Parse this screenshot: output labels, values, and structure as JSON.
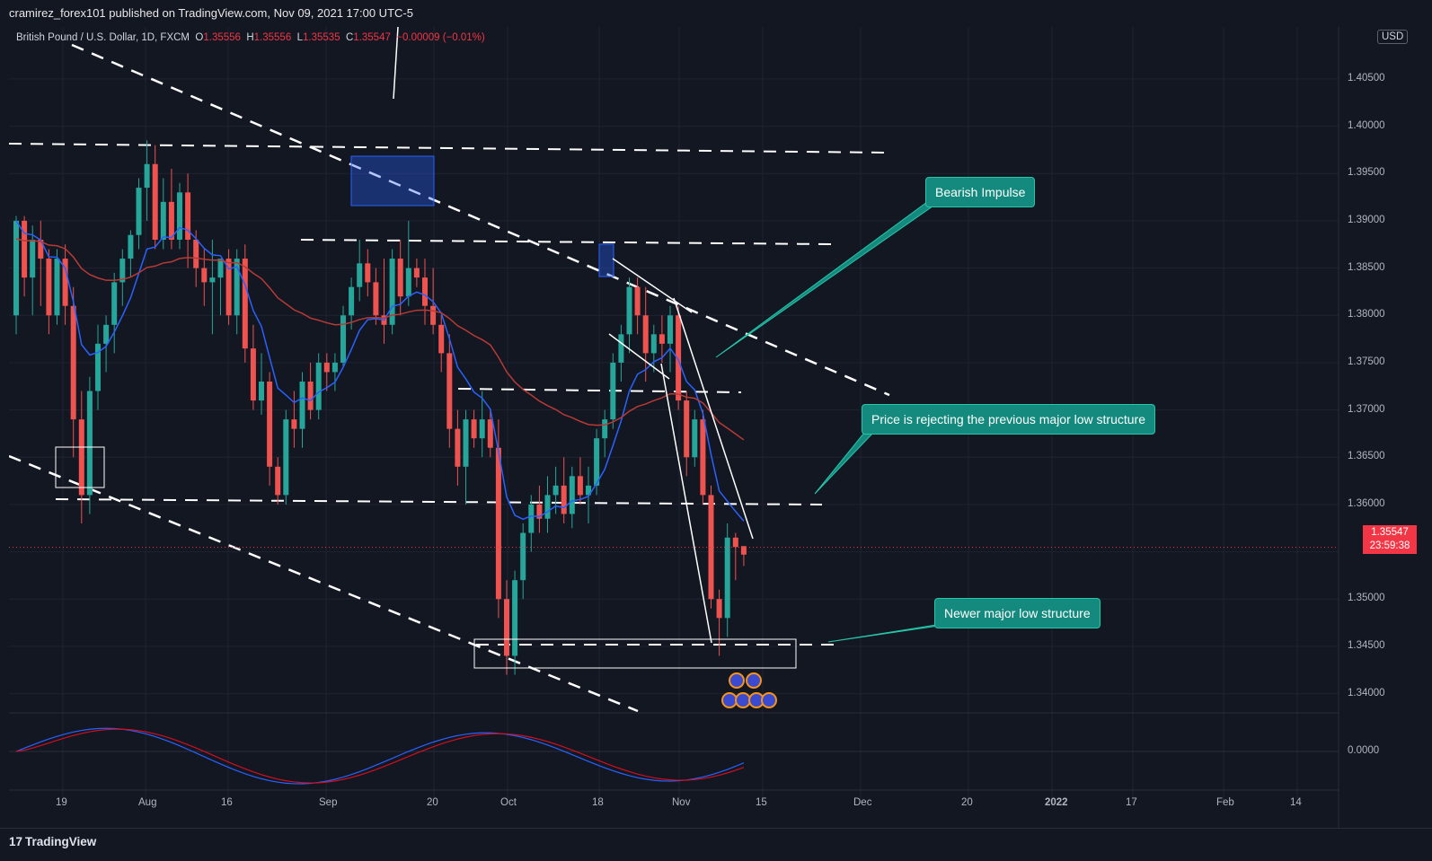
{
  "header": {
    "published_line": "cramirez_forex101 published on TradingView.com, Nov 09, 2021 17:00 UTC-5"
  },
  "legend": {
    "symbol": "British Pound / U.S. Dollar, 1D, FXCM",
    "o_label": "O",
    "o_value": "1.35556",
    "h_label": "H",
    "h_value": "1.35556",
    "l_label": "L",
    "l_value": "1.35535",
    "c_label": "C",
    "c_value": "1.35547",
    "change": "−0.00009 (−0.01%)"
  },
  "currency": "USD",
  "last_price": {
    "value": "1.35547",
    "countdown": "23:59:38"
  },
  "annotations": [
    {
      "text": "Bearish Impulse"
    },
    {
      "text": "Price is rejecting the previous major low structure"
    },
    {
      "text": "Newer major low structure"
    }
  ],
  "colors": {
    "bull": "#26a69a",
    "bear": "#ef5350",
    "ema_fast": "#2962ff",
    "ema_slow": "#b73a36",
    "stoch_k": "#2962ff",
    "stoch_d": "#d10f1f",
    "callout": "#138a7d"
  },
  "footer": {
    "brand": "TradingView",
    "brand_mark": "17"
  },
  "chart_data": {
    "type": "candlestick",
    "symbol": "GBPUSD",
    "timeframe": "1D",
    "y_axis": {
      "ticks": [
        "1.40500",
        "1.40000",
        "1.39500",
        "1.39000",
        "1.38500",
        "1.38000",
        "1.37500",
        "1.37000",
        "1.36500",
        "1.36000",
        "1.35000",
        "1.34500",
        "1.34000"
      ],
      "range": [
        1.3355,
        1.4105
      ]
    },
    "x_axis": {
      "ticks": [
        "19",
        "Aug",
        "16",
        "Sep",
        "20",
        "Oct",
        "18",
        "Nov",
        "15",
        "Dec",
        "20",
        "2022",
        "17",
        "Feb",
        "14"
      ]
    },
    "oscillator": {
      "ticks": [
        "0.0000"
      ]
    },
    "candles": [
      [
        1.38,
        1.3905,
        1.378,
        1.39
      ],
      [
        1.39,
        1.3905,
        1.382,
        1.384
      ],
      [
        1.384,
        1.3895,
        1.38,
        1.388
      ],
      [
        1.388,
        1.39,
        1.381,
        1.386
      ],
      [
        1.386,
        1.387,
        1.378,
        1.38
      ],
      [
        1.38,
        1.387,
        1.379,
        1.386
      ],
      [
        1.386,
        1.3875,
        1.379,
        1.381
      ],
      [
        1.381,
        1.383,
        1.365,
        1.369
      ],
      [
        1.369,
        1.372,
        1.358,
        1.361
      ],
      [
        1.361,
        1.3735,
        1.359,
        1.372
      ],
      [
        1.372,
        1.379,
        1.37,
        1.377
      ],
      [
        1.377,
        1.38,
        1.374,
        1.379
      ],
      [
        1.379,
        1.3845,
        1.376,
        1.3835
      ],
      [
        1.3835,
        1.387,
        1.381,
        1.386
      ],
      [
        1.386,
        1.389,
        1.384,
        1.3885
      ],
      [
        1.3885,
        1.3945,
        1.387,
        1.3935
      ],
      [
        1.3935,
        1.3985,
        1.39,
        1.396
      ],
      [
        1.396,
        1.398,
        1.387,
        1.388
      ],
      [
        1.388,
        1.3945,
        1.387,
        1.392
      ],
      [
        1.392,
        1.3955,
        1.387,
        1.388
      ],
      [
        1.388,
        1.394,
        1.387,
        1.393
      ],
      [
        1.393,
        1.395,
        1.385,
        1.388
      ],
      [
        1.388,
        1.389,
        1.383,
        1.385
      ],
      [
        1.385,
        1.387,
        1.381,
        1.3835
      ],
      [
        1.3835,
        1.388,
        1.378,
        1.384
      ],
      [
        1.384,
        1.386,
        1.38,
        1.386
      ],
      [
        1.386,
        1.387,
        1.379,
        1.38
      ],
      [
        1.38,
        1.387,
        1.378,
        1.386
      ],
      [
        1.386,
        1.3875,
        1.375,
        1.3765
      ],
      [
        1.3765,
        1.379,
        1.37,
        1.371
      ],
      [
        1.371,
        1.376,
        1.3695,
        1.373
      ],
      [
        1.373,
        1.374,
        1.362,
        1.364
      ],
      [
        1.364,
        1.365,
        1.36,
        1.361
      ],
      [
        1.361,
        1.37,
        1.36,
        1.369
      ],
      [
        1.369,
        1.372,
        1.366,
        1.368
      ],
      [
        1.368,
        1.374,
        1.366,
        1.373
      ],
      [
        1.373,
        1.375,
        1.369,
        1.37
      ],
      [
        1.37,
        1.376,
        1.369,
        1.375
      ],
      [
        1.375,
        1.376,
        1.372,
        1.374
      ],
      [
        1.374,
        1.376,
        1.372,
        1.375
      ],
      [
        1.375,
        1.381,
        1.3745,
        1.38
      ],
      [
        1.38,
        1.384,
        1.3785,
        1.383
      ],
      [
        1.383,
        1.388,
        1.3815,
        1.3855
      ],
      [
        1.3855,
        1.387,
        1.382,
        1.3835
      ],
      [
        1.3835,
        1.385,
        1.379,
        1.38
      ],
      [
        1.38,
        1.386,
        1.377,
        1.379
      ],
      [
        1.379,
        1.387,
        1.378,
        1.386
      ],
      [
        1.386,
        1.388,
        1.38,
        1.382
      ],
      [
        1.382,
        1.39,
        1.381,
        1.385
      ],
      [
        1.385,
        1.386,
        1.383,
        1.384
      ],
      [
        1.384,
        1.386,
        1.379,
        1.381
      ],
      [
        1.381,
        1.385,
        1.378,
        1.379
      ],
      [
        1.379,
        1.38,
        1.374,
        1.376
      ],
      [
        1.376,
        1.378,
        1.366,
        1.368
      ],
      [
        1.368,
        1.37,
        1.362,
        1.364
      ],
      [
        1.364,
        1.37,
        1.36,
        1.369
      ],
      [
        1.369,
        1.37,
        1.366,
        1.367
      ],
      [
        1.367,
        1.372,
        1.365,
        1.369
      ],
      [
        1.369,
        1.37,
        1.365,
        1.366
      ],
      [
        1.366,
        1.369,
        1.348,
        1.35
      ],
      [
        1.35,
        1.352,
        1.342,
        1.344
      ],
      [
        1.344,
        1.353,
        1.342,
        1.352
      ],
      [
        1.352,
        1.358,
        1.35,
        1.357
      ],
      [
        1.357,
        1.361,
        1.355,
        1.36
      ],
      [
        1.36,
        1.362,
        1.357,
        1.3585
      ],
      [
        1.3585,
        1.363,
        1.357,
        1.361
      ],
      [
        1.361,
        1.364,
        1.359,
        1.362
      ],
      [
        1.362,
        1.365,
        1.358,
        1.359
      ],
      [
        1.359,
        1.364,
        1.3575,
        1.363
      ],
      [
        1.363,
        1.365,
        1.36,
        1.361
      ],
      [
        1.361,
        1.364,
        1.358,
        1.362
      ],
      [
        1.362,
        1.368,
        1.361,
        1.367
      ],
      [
        1.367,
        1.37,
        1.365,
        1.369
      ],
      [
        1.369,
        1.376,
        1.368,
        1.375
      ],
      [
        1.375,
        1.379,
        1.373,
        1.378
      ],
      [
        1.378,
        1.384,
        1.376,
        1.383
      ],
      [
        1.383,
        1.384,
        1.378,
        1.38
      ],
      [
        1.38,
        1.383,
        1.373,
        1.376
      ],
      [
        1.376,
        1.379,
        1.374,
        1.378
      ],
      [
        1.378,
        1.38,
        1.375,
        1.377
      ],
      [
        1.377,
        1.381,
        1.374,
        1.38
      ],
      [
        1.38,
        1.381,
        1.37,
        1.371
      ],
      [
        1.371,
        1.372,
        1.363,
        1.365
      ],
      [
        1.365,
        1.37,
        1.364,
        1.369
      ],
      [
        1.369,
        1.37,
        1.36,
        1.361
      ],
      [
        1.361,
        1.362,
        1.349,
        1.35
      ],
      [
        1.35,
        1.351,
        1.344,
        1.348
      ],
      [
        1.348,
        1.358,
        1.346,
        1.3565
      ],
      [
        1.3565,
        1.357,
        1.352,
        1.3555
      ],
      [
        1.3556,
        1.3556,
        1.3535,
        1.3547
      ]
    ],
    "series": [
      {
        "name": "EMA fast",
        "color": "#2962ff"
      },
      {
        "name": "EMA slow",
        "color": "#b73a36"
      },
      {
        "name": "Stoch %K",
        "color": "#2962ff"
      },
      {
        "name": "Stoch %D",
        "color": "#d10f1f"
      }
    ]
  }
}
